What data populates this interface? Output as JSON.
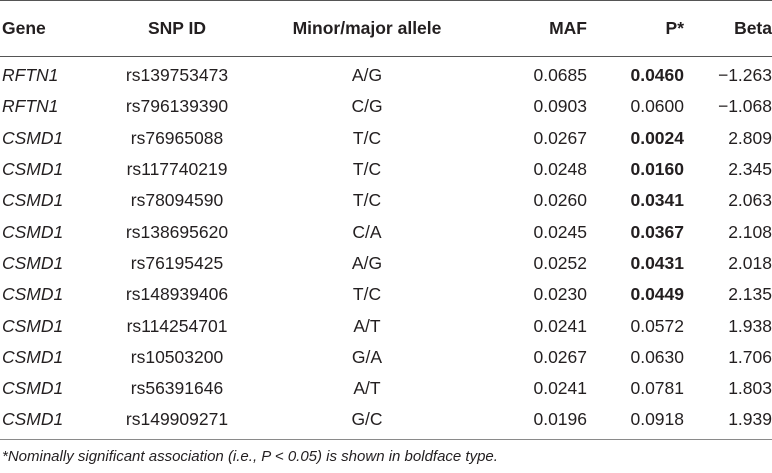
{
  "columns": [
    "Gene",
    "SNP ID",
    "Minor/major allele",
    "MAF",
    "P*",
    "Beta"
  ],
  "rows": [
    {
      "gene": "RFTN1",
      "snp": "rs139753473",
      "allele": "A/G",
      "maf": "0.0685",
      "p": "0.0460",
      "p_bold": true,
      "beta": "−1.263"
    },
    {
      "gene": "RFTN1",
      "snp": "rs796139390",
      "allele": "C/G",
      "maf": "0.0903",
      "p": "0.0600",
      "p_bold": false,
      "beta": "−1.068"
    },
    {
      "gene": "CSMD1",
      "snp": "rs76965088",
      "allele": "T/C",
      "maf": "0.0267",
      "p": "0.0024",
      "p_bold": true,
      "beta": "2.809"
    },
    {
      "gene": "CSMD1",
      "snp": "rs117740219",
      "allele": "T/C",
      "maf": "0.0248",
      "p": "0.0160",
      "p_bold": true,
      "beta": "2.345"
    },
    {
      "gene": "CSMD1",
      "snp": "rs78094590",
      "allele": "T/C",
      "maf": "0.0260",
      "p": "0.0341",
      "p_bold": true,
      "beta": "2.063"
    },
    {
      "gene": "CSMD1",
      "snp": "rs138695620",
      "allele": "C/A",
      "maf": "0.0245",
      "p": "0.0367",
      "p_bold": true,
      "beta": "2.108"
    },
    {
      "gene": "CSMD1",
      "snp": "rs76195425",
      "allele": "A/G",
      "maf": "0.0252",
      "p": "0.0431",
      "p_bold": true,
      "beta": "2.018"
    },
    {
      "gene": "CSMD1",
      "snp": "rs148939406",
      "allele": "T/C",
      "maf": "0.0230",
      "p": "0.0449",
      "p_bold": true,
      "beta": "2.135"
    },
    {
      "gene": "CSMD1",
      "snp": "rs114254701",
      "allele": "A/T",
      "maf": "0.0241",
      "p": "0.0572",
      "p_bold": false,
      "beta": "1.938"
    },
    {
      "gene": "CSMD1",
      "snp": "rs10503200",
      "allele": "G/A",
      "maf": "0.0267",
      "p": "0.0630",
      "p_bold": false,
      "beta": "1.706"
    },
    {
      "gene": "CSMD1",
      "snp": "rs56391646",
      "allele": "A/T",
      "maf": "0.0241",
      "p": "0.0781",
      "p_bold": false,
      "beta": "1.803"
    },
    {
      "gene": "CSMD1",
      "snp": "rs149909271",
      "allele": "G/C",
      "maf": "0.0196",
      "p": "0.0918",
      "p_bold": false,
      "beta": "1.939"
    }
  ],
  "footnote": "*Nominally significant association (i.e., P < 0.05) is shown in boldface type."
}
